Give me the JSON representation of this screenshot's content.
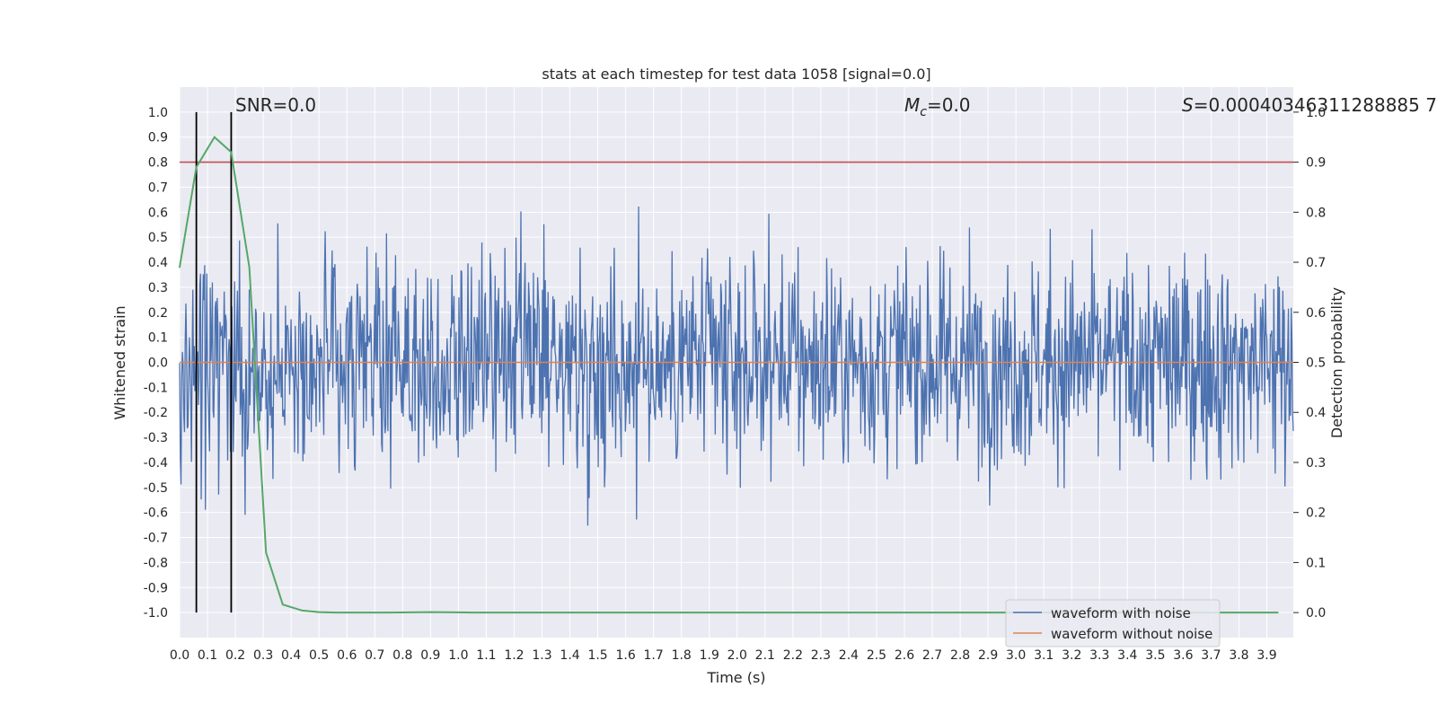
{
  "chart_data": {
    "type": "line",
    "title": "stats at each timestep for test data 1058 [signal=0.0]",
    "xlabel": "Time (s)",
    "ylabel": "Whitened strain",
    "y2label": "Detection probability",
    "xlim": [
      0.0,
      3.995
    ],
    "ylim": [
      -1.1,
      1.1
    ],
    "y2lim": [
      -0.05,
      1.05
    ],
    "x_ticks": [
      "0.0",
      "0.1",
      "0.2",
      "0.3",
      "0.4",
      "0.5",
      "0.6",
      "0.7",
      "0.8",
      "0.9",
      "1.0",
      "1.1",
      "1.2",
      "1.3",
      "1.4",
      "1.5",
      "1.6",
      "1.7",
      "1.8",
      "1.9",
      "2.0",
      "2.1",
      "2.2",
      "2.3",
      "2.4",
      "2.5",
      "2.6",
      "2.7",
      "2.8",
      "2.9",
      "3.0",
      "3.1",
      "3.2",
      "3.3",
      "3.4",
      "3.5",
      "3.6",
      "3.7",
      "3.8",
      "3.9"
    ],
    "y_ticks": [
      "1.0",
      "0.9",
      "0.8",
      "0.7",
      "0.6",
      "0.5",
      "0.4",
      "0.3",
      "0.2",
      "0.1",
      "0.0",
      "-0.1",
      "-0.2",
      "-0.3",
      "-0.4",
      "-0.5",
      "-0.6",
      "-0.7",
      "-0.8",
      "-0.9",
      "-1.0"
    ],
    "y2_ticks": [
      "1.0",
      "0.9",
      "0.8",
      "0.7",
      "0.6",
      "0.5",
      "0.4",
      "0.3",
      "0.2",
      "0.1",
      "0.0"
    ],
    "annotations": {
      "snr": "SNR=0.0",
      "mc_symbol": "M",
      "mc_sub": "c",
      "mc_value": "=0.0",
      "s_symbol": "S",
      "s_value": "=0.00040346311288885 7"
    },
    "vlines_x": [
      0.06,
      0.185
    ],
    "threshold": 0.9,
    "series": [
      {
        "name": "waveform with noise",
        "color": "#4c72b0",
        "kind": "noise",
        "n_samples": 1600,
        "amplitude_range": [
          -1.0,
          1.0
        ],
        "seed": 1058
      },
      {
        "name": "waveform without noise",
        "color": "#dd8452",
        "kind": "flat",
        "x": [
          0.0,
          3.995
        ],
        "y": [
          0.0,
          0.0
        ]
      },
      {
        "name": "detection probability",
        "color": "#55a868",
        "axis": "right",
        "x": [
          0.0,
          0.06,
          0.125,
          0.185,
          0.25,
          0.31,
          0.37,
          0.44,
          0.5,
          0.56,
          0.62,
          0.75,
          0.9,
          1.05,
          1.5,
          2.0,
          2.5,
          3.0,
          3.5,
          3.94
        ],
        "y": [
          0.69,
          0.89,
          0.95,
          0.92,
          0.69,
          0.12,
          0.016,
          0.004,
          0.001,
          0.0,
          0.0,
          0.0,
          0.001,
          0.0,
          0.0,
          0.0,
          0.0,
          0.0,
          0.0,
          0.0
        ]
      }
    ],
    "legend": {
      "position": "lower-right",
      "entries": [
        "waveform with noise",
        "waveform without noise"
      ]
    },
    "grid": true
  }
}
